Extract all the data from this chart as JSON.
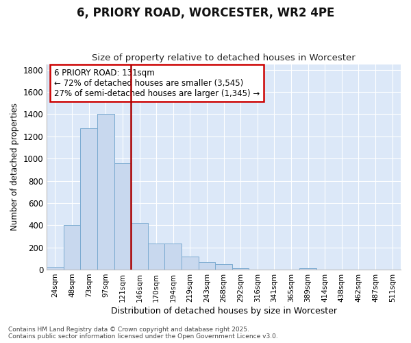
{
  "title_line1": "6, PRIORY ROAD, WORCESTER, WR2 4PE",
  "title_line2": "Size of property relative to detached houses in Worcester",
  "xlabel": "Distribution of detached houses by size in Worcester",
  "ylabel": "Number of detached properties",
  "bar_color": "#c8d8ee",
  "bar_edge_color": "#7aaad0",
  "background_color": "#dce8f8",
  "grid_color": "#ffffff",
  "categories": [
    "24sqm",
    "48sqm",
    "73sqm",
    "97sqm",
    "121sqm",
    "146sqm",
    "170sqm",
    "194sqm",
    "219sqm",
    "243sqm",
    "268sqm",
    "292sqm",
    "316sqm",
    "341sqm",
    "365sqm",
    "389sqm",
    "414sqm",
    "438sqm",
    "462sqm",
    "487sqm",
    "511sqm"
  ],
  "values": [
    25,
    400,
    1270,
    1400,
    960,
    420,
    235,
    235,
    120,
    70,
    50,
    15,
    0,
    0,
    0,
    15,
    0,
    0,
    0,
    0,
    0
  ],
  "vline_index": 4,
  "annotation_text_line1": "6 PRIORY ROAD: 131sqm",
  "annotation_text_line2": "← 72% of detached houses are smaller (3,545)",
  "annotation_text_line3": "27% of semi-detached houses are larger (1,345) →",
  "annotation_box_color": "#ffffff",
  "annotation_box_edge_color": "#cc0000",
  "vline_color": "#aa0000",
  "ylim": [
    0,
    1850
  ],
  "yticks": [
    0,
    200,
    400,
    600,
    800,
    1000,
    1200,
    1400,
    1600,
    1800
  ],
  "footer_line1": "Contains HM Land Registry data © Crown copyright and database right 2025.",
  "footer_line2": "Contains public sector information licensed under the Open Government Licence v3.0.",
  "fig_width": 6.0,
  "fig_height": 5.0,
  "fig_bg": "#ffffff"
}
